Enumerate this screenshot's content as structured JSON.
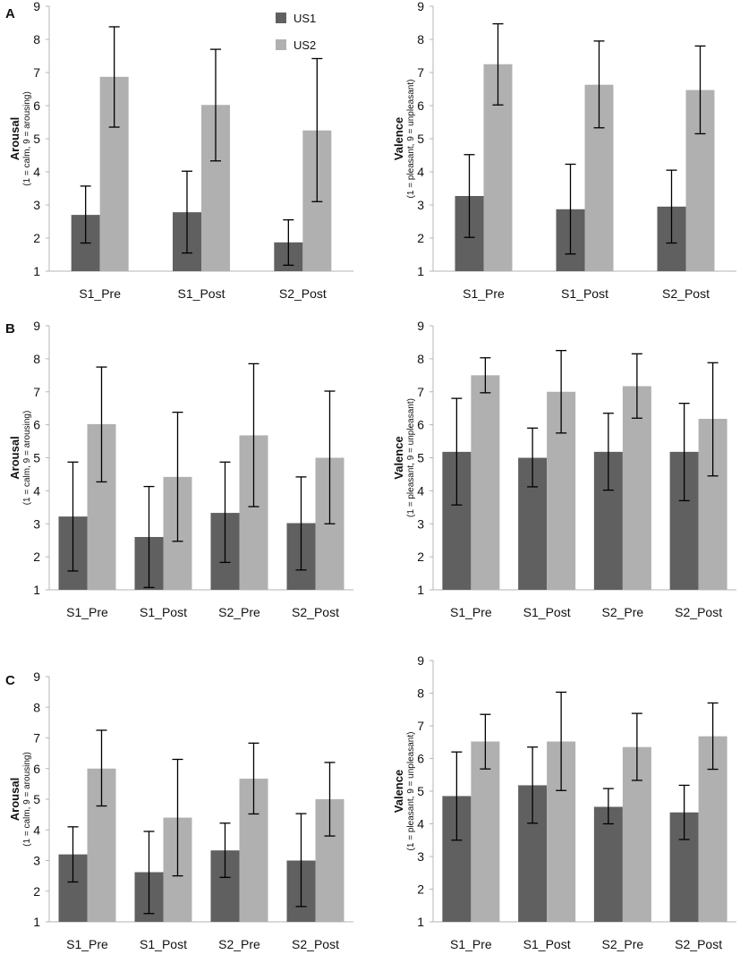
{
  "colors": {
    "US1": "#606060",
    "US2": "#b0b0b0",
    "axis": "#b5b5b5",
    "errorbar": "#000000"
  },
  "legend": [
    {
      "name": "US1",
      "color": "#606060"
    },
    {
      "name": "US2",
      "color": "#b0b0b0"
    }
  ],
  "panels": [
    {
      "letter": "A"
    },
    {
      "letter": "B"
    },
    {
      "letter": "C"
    }
  ],
  "chart_data": [
    {
      "type": "bar",
      "panel": "A",
      "side": "left",
      "ylabel": "Arousal",
      "ysublabel": "(1 = calm, 9 = arousing)",
      "ylim": [
        1,
        9
      ],
      "yticks": [
        1,
        2,
        3,
        4,
        5,
        6,
        7,
        8,
        9
      ],
      "categories": [
        "S1_Pre",
        "S1_Post",
        "S2_Post"
      ],
      "series": [
        {
          "name": "US1",
          "values": [
            2.7,
            2.78,
            1.87
          ],
          "err_low": [
            1.85,
            1.55,
            1.18
          ],
          "err_high": [
            3.57,
            4.02,
            2.55
          ]
        },
        {
          "name": "US2",
          "values": [
            6.87,
            6.02,
            5.25
          ],
          "err_low": [
            5.35,
            4.33,
            3.1
          ],
          "err_high": [
            8.38,
            7.7,
            7.42
          ]
        }
      ]
    },
    {
      "type": "bar",
      "panel": "A",
      "side": "right",
      "ylabel": "Valence",
      "ysublabel": "(1 = pleasant, 9 = unpleasant)",
      "ylim": [
        1,
        9
      ],
      "yticks": [
        1,
        2,
        3,
        4,
        5,
        6,
        7,
        8,
        9
      ],
      "categories": [
        "S1_Pre",
        "S1_Post",
        "S2_Post"
      ],
      "series": [
        {
          "name": "US1",
          "values": [
            3.27,
            2.87,
            2.95
          ],
          "err_low": [
            2.02,
            1.52,
            1.85
          ],
          "err_high": [
            4.52,
            4.23,
            4.05
          ]
        },
        {
          "name": "US2",
          "values": [
            7.25,
            6.63,
            6.47
          ],
          "err_low": [
            6.02,
            5.33,
            5.15
          ],
          "err_high": [
            8.47,
            7.95,
            7.8
          ]
        }
      ]
    },
    {
      "type": "bar",
      "panel": "B",
      "side": "left",
      "ylabel": "Arousal",
      "ysublabel": "(1 = calm, 9 = arousing)",
      "ylim": [
        1,
        9
      ],
      "yticks": [
        1,
        2,
        3,
        4,
        5,
        6,
        7,
        8,
        9
      ],
      "categories": [
        "S1_Pre",
        "S1_Post",
        "S2_Pre",
        "S2_Post"
      ],
      "series": [
        {
          "name": "US1",
          "values": [
            3.22,
            2.6,
            3.33,
            3.02
          ],
          "err_low": [
            1.57,
            1.07,
            1.83,
            1.6
          ],
          "err_high": [
            4.87,
            4.13,
            4.87,
            4.42
          ]
        },
        {
          "name": "US2",
          "values": [
            6.02,
            4.42,
            5.68,
            5.0
          ],
          "err_low": [
            4.27,
            2.47,
            3.52,
            3.0
          ],
          "err_high": [
            7.75,
            6.38,
            7.85,
            7.02
          ]
        }
      ]
    },
    {
      "type": "bar",
      "panel": "B",
      "side": "right",
      "ylabel": "Valence",
      "ysublabel": "(1 = pleasant, 9 = unpleasant)",
      "ylim": [
        1,
        9
      ],
      "yticks": [
        1,
        2,
        3,
        4,
        5,
        6,
        7,
        8,
        9
      ],
      "categories": [
        "S1_Pre",
        "S1_Post",
        "S2_Pre",
        "S2_Post"
      ],
      "series": [
        {
          "name": "US1",
          "values": [
            5.18,
            5.0,
            5.18,
            5.18
          ],
          "err_low": [
            3.57,
            4.12,
            4.02,
            3.7
          ],
          "err_high": [
            6.8,
            5.9,
            6.35,
            6.65
          ]
        },
        {
          "name": "US2",
          "values": [
            7.5,
            7.0,
            7.17,
            6.18
          ],
          "err_low": [
            6.97,
            5.75,
            6.2,
            4.45
          ],
          "err_high": [
            8.03,
            8.25,
            8.15,
            7.88
          ]
        }
      ]
    },
    {
      "type": "bar",
      "panel": "C",
      "side": "left",
      "ylabel": "Arousal",
      "ysublabel": "(1 = calm, 9 = arousing)",
      "ylim": [
        1,
        9
      ],
      "yticks": [
        1,
        2,
        3,
        4,
        5,
        6,
        7,
        8,
        9
      ],
      "categories": [
        "S1_Pre",
        "S1_Post",
        "S2_Pre",
        "S2_Post"
      ],
      "series": [
        {
          "name": "US1",
          "values": [
            3.2,
            2.62,
            3.33,
            3.0
          ],
          "err_low": [
            2.3,
            1.27,
            2.45,
            1.5
          ],
          "err_high": [
            4.1,
            3.95,
            4.22,
            4.53
          ]
        },
        {
          "name": "US2",
          "values": [
            6.0,
            4.4,
            5.67,
            5.0
          ],
          "err_low": [
            4.78,
            2.5,
            4.52,
            3.8
          ],
          "err_high": [
            7.25,
            6.3,
            6.83,
            6.2
          ]
        }
      ]
    },
    {
      "type": "bar",
      "panel": "C",
      "side": "right",
      "ylabel": "Valence",
      "ysublabel": "(1 = pleasant, 9 = unpleasant)",
      "ylim": [
        1,
        9
      ],
      "yticks": [
        1,
        2,
        3,
        4,
        5,
        6,
        7,
        8,
        9
      ],
      "categories": [
        "S1_Pre",
        "S1_Post",
        "S2_Pre",
        "S2_Post"
      ],
      "series": [
        {
          "name": "US1",
          "values": [
            4.85,
            5.18,
            4.52,
            4.35
          ],
          "err_low": [
            3.5,
            4.02,
            4.0,
            3.52
          ],
          "err_high": [
            6.2,
            6.35,
            5.08,
            5.18
          ]
        },
        {
          "name": "US2",
          "values": [
            6.52,
            6.52,
            6.35,
            6.68
          ],
          "err_low": [
            5.68,
            5.02,
            5.33,
            5.67
          ],
          "err_high": [
            7.35,
            8.03,
            7.38,
            7.7
          ]
        }
      ]
    }
  ]
}
